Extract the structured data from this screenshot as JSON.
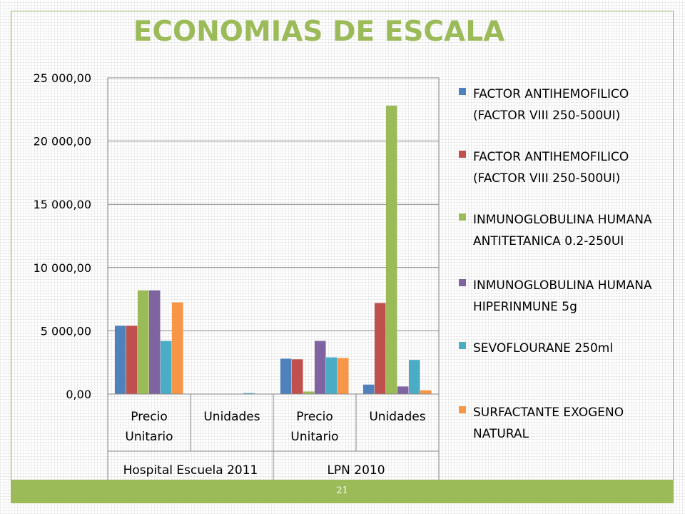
{
  "slide": {
    "page_number": "21"
  },
  "chart_data": {
    "type": "bar",
    "title": "ECONOMIAS DE ESCALA",
    "groups": [
      "Hospital Escuela 2011",
      "LPN 2010"
    ],
    "categories": [
      "Precio\nUnitario",
      "Unidades",
      "Precio\nUnitario",
      "Unidades"
    ],
    "y_ticks": [
      "0,00",
      "5 000,00",
      "10 000,00",
      "15 000,00",
      "20 000,00",
      "25 000,00"
    ],
    "ylim": [
      0,
      25000
    ],
    "grid": true,
    "legend_position": "right",
    "series": [
      {
        "name": "FACTOR ANTIHEMOFILICO (FACTOR VIII 250-500UI)",
        "color": "#4f81bd",
        "values": [
          5400,
          0,
          2800,
          750
        ]
      },
      {
        "name": "FACTOR ANTIHEMOFILICO (FACTOR VIII 250-500UI)",
        "color": "#c0504d",
        "values": [
          5400,
          0,
          2750,
          7200
        ]
      },
      {
        "name": "INMUNOGLOBULINA HUMANA ANTITETANICA 0.2-250UI",
        "color": "#9bbb59",
        "values": [
          8200,
          0,
          200,
          22800
        ]
      },
      {
        "name": "INMUNOGLOBULINA HUMANA HIPERINMUNE 5g",
        "color": "#8064a2",
        "values": [
          8200,
          0,
          4200,
          600
        ]
      },
      {
        "name": "SEVOFLOURANE 250ml",
        "color": "#4bacc6",
        "values": [
          4200,
          80,
          2900,
          2700
        ]
      },
      {
        "name": "SURFACTANTE EXOGENO NATURAL",
        "color": "#f79646",
        "values": [
          7250,
          0,
          2850,
          300
        ]
      }
    ]
  }
}
